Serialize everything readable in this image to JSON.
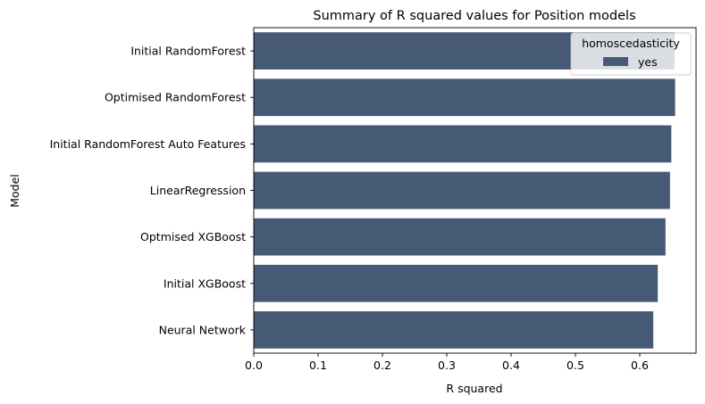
{
  "chart_data": {
    "type": "bar",
    "orientation": "horizontal",
    "title": "Summary of R squared values for Position models",
    "xlabel": "R squared",
    "ylabel": "Model",
    "categories": [
      "Initial RandomForest",
      "Optimised RandomForest",
      "Initial RandomForest Auto Features",
      "LinearRegression",
      "Optmised XGBoost",
      "Initial XGBoost",
      "Neural Network"
    ],
    "series": [
      {
        "name": "yes",
        "color": "#475a75",
        "values": [
          0.654,
          0.655,
          0.649,
          0.647,
          0.64,
          0.628,
          0.621
        ]
      }
    ],
    "xlim": [
      0,
      0.6875
    ],
    "xticks": [
      "0.0",
      "0.1",
      "0.2",
      "0.3",
      "0.4",
      "0.5",
      "0.6"
    ],
    "xtick_values": [
      0.0,
      0.1,
      0.2,
      0.3,
      0.4,
      0.5,
      0.6
    ],
    "grid": false,
    "legend": {
      "title": "homoscedasticity",
      "location": "top-right",
      "entries": [
        "yes"
      ]
    }
  }
}
